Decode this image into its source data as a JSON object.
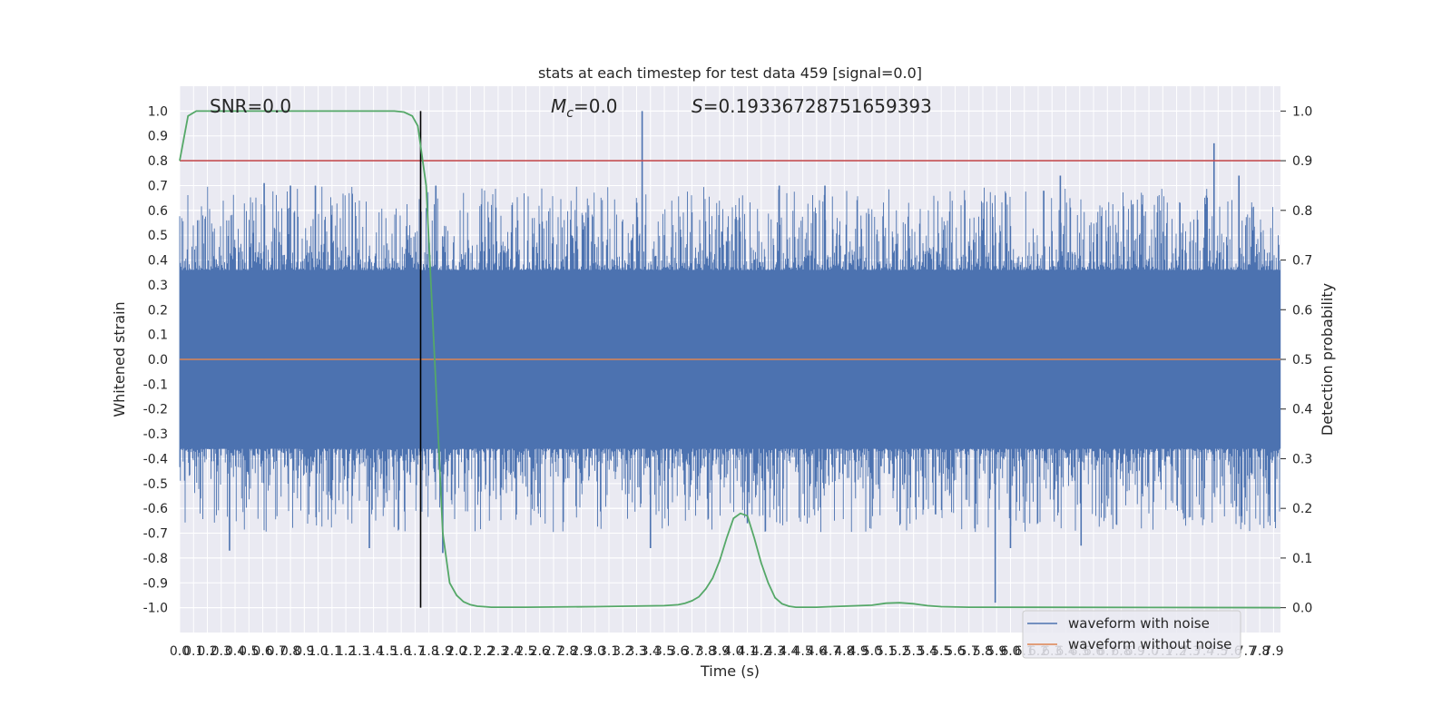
{
  "chart_data": {
    "type": "line",
    "title": "stats at each timestep for test data 459 [signal=0.0]",
    "xlabel": "Time (s)",
    "ylabel": "Whitened strain",
    "ylabel_right": "Detection probability",
    "xlim": [
      0.0,
      7.95
    ],
    "ylim": [
      -1.1,
      1.1
    ],
    "ylim_right": [
      -0.05,
      1.05
    ],
    "x_ticks": [
      0.0,
      0.1,
      0.2,
      0.3,
      0.4,
      0.5,
      0.6,
      0.7,
      0.8,
      0.9,
      1.0,
      1.1,
      1.2,
      1.3,
      1.4,
      1.5,
      1.6,
      1.7,
      1.8,
      1.9,
      2.0,
      2.1,
      2.2,
      2.3,
      2.4,
      2.5,
      2.6,
      2.7,
      2.8,
      2.9,
      3.0,
      3.1,
      3.2,
      3.3,
      3.4,
      3.5,
      3.6,
      3.7,
      3.8,
      3.9,
      4.0,
      4.1,
      4.2,
      4.3,
      4.4,
      4.5,
      4.6,
      4.7,
      4.8,
      4.9,
      5.0,
      5.1,
      5.2,
      5.3,
      5.4,
      5.5,
      5.6,
      5.7,
      5.8,
      5.9,
      6.0,
      6.1,
      6.2,
      6.3,
      6.4,
      6.5,
      6.6,
      6.7,
      6.8,
      6.9,
      7.0,
      7.1,
      7.2,
      7.3,
      7.4,
      7.5,
      7.6,
      7.7,
      7.8,
      7.9
    ],
    "y_ticks": [
      -1.0,
      -0.9,
      -0.8,
      -0.7,
      -0.6,
      -0.5,
      -0.4,
      -0.3,
      -0.2,
      -0.1,
      0.0,
      0.1,
      0.2,
      0.3,
      0.4,
      0.5,
      0.6,
      0.7,
      0.8,
      0.9,
      1.0
    ],
    "y_ticks_right": [
      0.0,
      0.1,
      0.2,
      0.3,
      0.4,
      0.5,
      0.6,
      0.7,
      0.8,
      0.9,
      1.0
    ],
    "grid": true,
    "legend_position": "lower-right",
    "annotations": {
      "snr": "SNR=0.0",
      "mc": "=0.0",
      "mc_symbol": "M",
      "mc_subscript": "c",
      "s": "=0.19336728751659393",
      "s_symbol": "S"
    },
    "threshold": {
      "value": 0.9,
      "axis": "right",
      "color": "#c44e52"
    },
    "event_marker_x": 1.74,
    "series": [
      {
        "name": "waveform with noise",
        "color": "#4c72b0",
        "axis": "left",
        "description_envelope_typical": 0.4,
        "spikes": [
          {
            "x": 3.34,
            "y": 1.0
          },
          {
            "x": 7.47,
            "y": 0.87
          },
          {
            "x": 6.36,
            "y": 0.74
          },
          {
            "x": 7.65,
            "y": 0.74
          },
          {
            "x": 4.33,
            "y": 0.7
          },
          {
            "x": 4.66,
            "y": 0.7
          },
          {
            "x": 0.61,
            "y": 0.71
          },
          {
            "x": 0.8,
            "y": 0.7
          },
          {
            "x": 0.98,
            "y": 0.7
          },
          {
            "x": 1.85,
            "y": 0.7
          },
          {
            "x": 5.89,
            "y": -0.98
          },
          {
            "x": 0.36,
            "y": -0.77
          },
          {
            "x": 1.37,
            "y": -0.76
          },
          {
            "x": 1.9,
            "y": -0.78
          },
          {
            "x": 3.4,
            "y": -0.76
          },
          {
            "x": 6.0,
            "y": -0.76
          },
          {
            "x": 6.51,
            "y": -0.75
          },
          {
            "x": 4.1,
            "y": -0.66
          }
        ]
      },
      {
        "name": "waveform without noise",
        "color": "#dd8452",
        "axis": "left",
        "x": [
          0.0,
          7.95
        ],
        "y": [
          0.0,
          0.0
        ]
      },
      {
        "name": "",
        "color": "#55a868",
        "axis": "right",
        "x": [
          0.0,
          0.06,
          0.12,
          0.3,
          0.6,
          1.0,
          1.4,
          1.55,
          1.62,
          1.68,
          1.72,
          1.78,
          1.85,
          1.9,
          1.95,
          2.0,
          2.05,
          2.1,
          2.15,
          2.2,
          2.25,
          2.35,
          2.5,
          3.0,
          3.5,
          3.6,
          3.65,
          3.7,
          3.75,
          3.8,
          3.85,
          3.9,
          3.95,
          4.0,
          4.05,
          4.1,
          4.15,
          4.2,
          4.25,
          4.3,
          4.35,
          4.4,
          4.45,
          4.5,
          4.6,
          4.7,
          5.0,
          5.1,
          5.2,
          5.3,
          5.4,
          5.5,
          5.7,
          7.95
        ],
        "y": [
          0.9,
          0.99,
          1.0,
          1.0,
          1.0,
          1.0,
          1.0,
          1.0,
          0.998,
          0.99,
          0.97,
          0.85,
          0.45,
          0.15,
          0.05,
          0.025,
          0.012,
          0.006,
          0.003,
          0.002,
          0.001,
          0.001,
          0.001,
          0.002,
          0.004,
          0.006,
          0.009,
          0.014,
          0.022,
          0.038,
          0.06,
          0.095,
          0.14,
          0.18,
          0.19,
          0.185,
          0.14,
          0.09,
          0.05,
          0.02,
          0.008,
          0.003,
          0.001,
          0.001,
          0.001,
          0.002,
          0.005,
          0.009,
          0.01,
          0.008,
          0.004,
          0.002,
          0.001,
          0.0
        ]
      }
    ]
  }
}
